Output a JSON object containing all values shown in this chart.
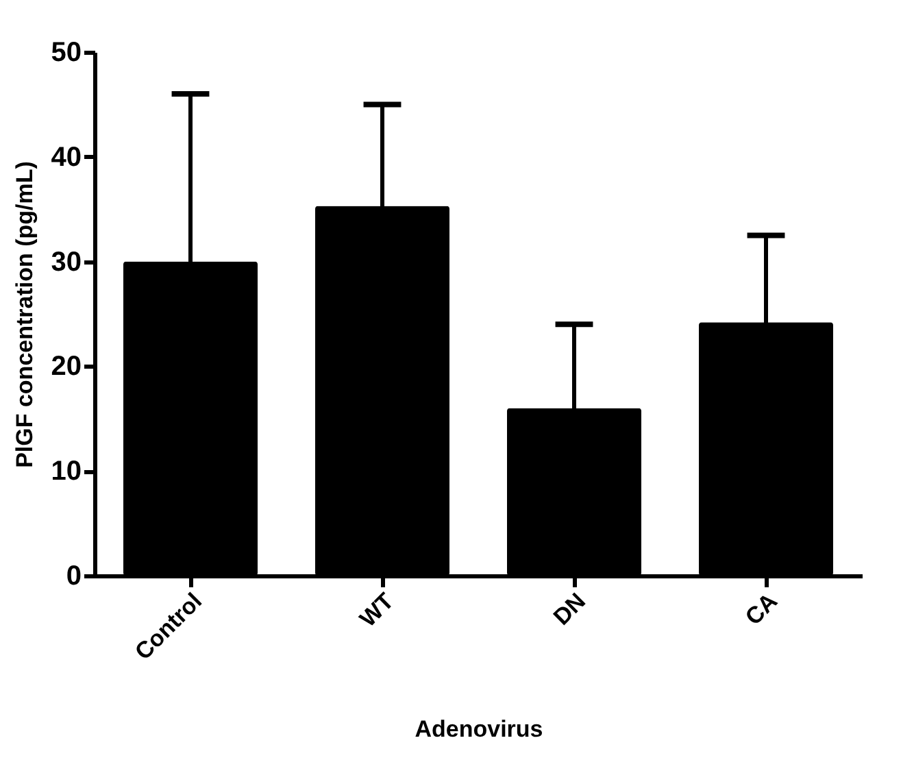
{
  "chart_data": {
    "type": "bar",
    "xlabel": "Adenovirus",
    "ylabel": "PlGF concentration (pg/mL)",
    "categories": [
      "Control",
      "WT",
      "DN",
      "CA"
    ],
    "values": [
      30.0,
      35.3,
      16.0,
      24.2
    ],
    "errors": [
      16.0,
      9.7,
      8.0,
      8.3
    ],
    "color": "#000000",
    "ylim": [
      0,
      50
    ],
    "yticks": [
      0,
      10,
      20,
      30,
      40,
      50
    ],
    "grid": false
  }
}
